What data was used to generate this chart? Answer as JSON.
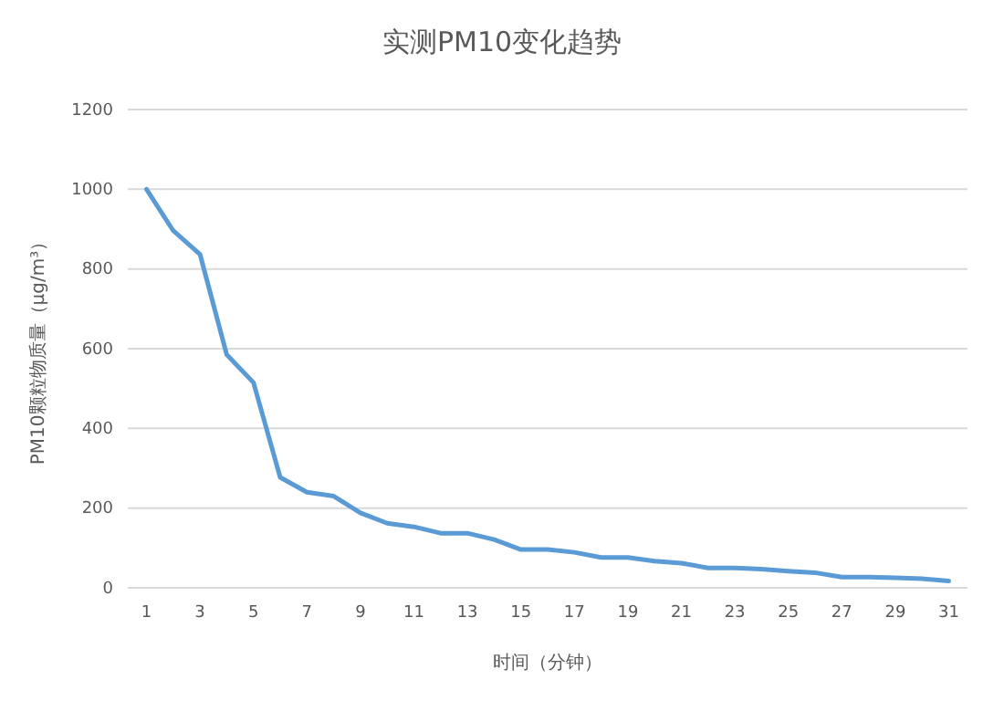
{
  "chart_data": {
    "type": "line",
    "title": "实测PM10变化趋势",
    "xlabel": "时间（分钟）",
    "ylabel": "PM10颗粒物质量（μg/m³）",
    "x": [
      1,
      2,
      3,
      4,
      5,
      6,
      7,
      8,
      9,
      10,
      11,
      12,
      13,
      14,
      15,
      16,
      17,
      18,
      19,
      20,
      21,
      22,
      23,
      24,
      25,
      26,
      27,
      28,
      29,
      30,
      31
    ],
    "xlim": [
      0.3,
      31.7
    ],
    "xticks": [
      1,
      3,
      5,
      7,
      9,
      11,
      13,
      15,
      17,
      19,
      21,
      23,
      25,
      27,
      29,
      31
    ],
    "series": [
      {
        "color": "#5b9bd5",
        "values": [
          1000,
          896,
          837,
          585,
          515,
          277,
          240,
          230,
          188,
          162,
          153,
          137,
          137,
          121,
          96,
          96,
          89,
          76,
          76,
          67,
          62,
          50,
          50,
          47,
          42,
          38,
          27,
          27,
          25,
          23,
          17
        ]
      }
    ],
    "ylim": [
      0,
      1200
    ],
    "yticks": [
      0,
      200,
      400,
      600,
      800,
      1000,
      1200
    ],
    "grid": "y",
    "marker": "none",
    "line_style": "solid"
  }
}
